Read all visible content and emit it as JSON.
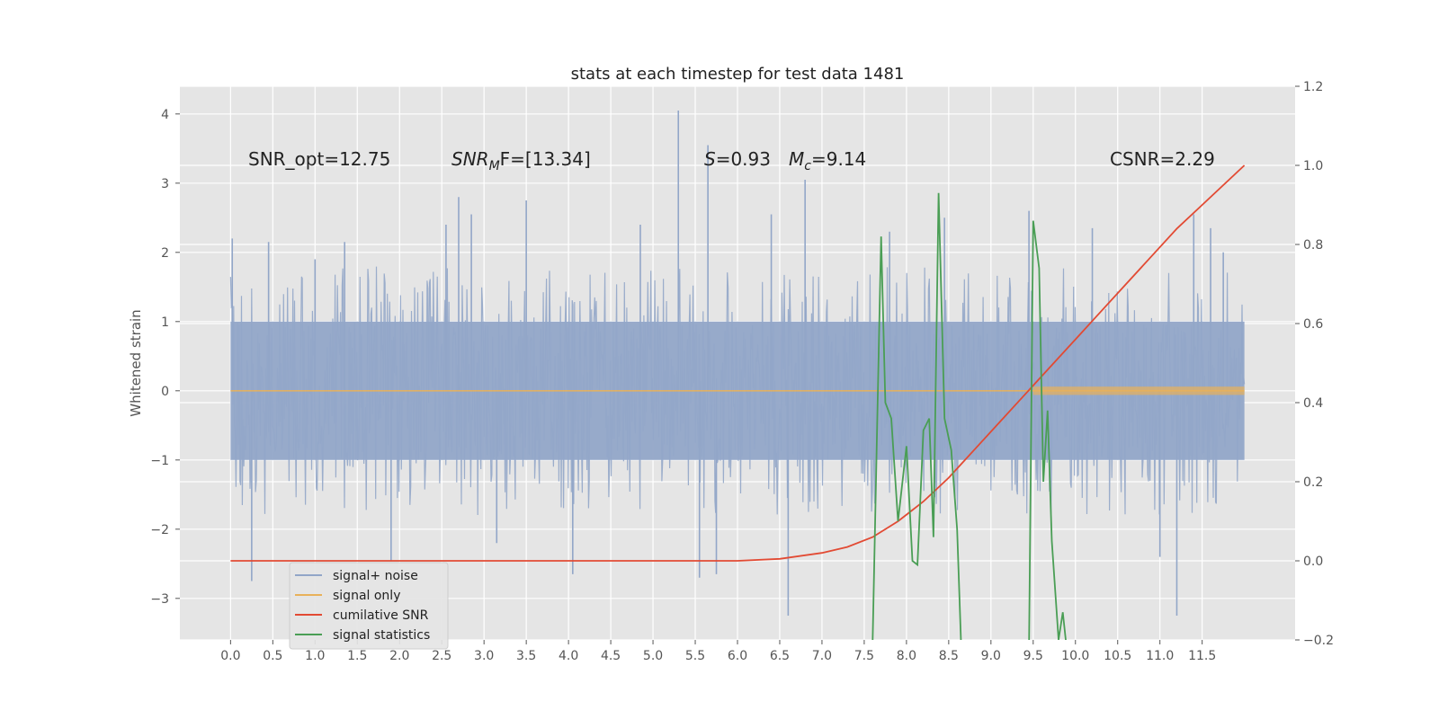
{
  "chart_data": {
    "type": "line",
    "title": "stats at each timestep for test data 1481",
    "ylabel": "Whitened strain",
    "xlim": [
      -0.6,
      12.6
    ],
    "ylim": [
      -3.6,
      4.4
    ],
    "y2lim": [
      -0.2,
      1.2
    ],
    "grid": true,
    "legend_position": "lower-left",
    "x_ticks": [
      0.0,
      0.5,
      1.0,
      1.5,
      2.0,
      2.5,
      3.0,
      3.5,
      4.0,
      4.5,
      5.0,
      5.5,
      6.0,
      6.5,
      7.0,
      7.5,
      8.0,
      8.5,
      9.0,
      9.5,
      10.0,
      10.5,
      11.0,
      11.5
    ],
    "x_tick_labels": [
      "0.0",
      "0.5",
      "1.0",
      "1.5",
      "2.0",
      "2.5",
      "3.0",
      "3.5",
      "4.0",
      "4.5",
      "5.0",
      "5.5",
      "6.0",
      "6.5",
      "7.0",
      "7.5",
      "8.0",
      "8.5",
      "9.0",
      "9.5",
      "10.0",
      "10.5",
      "11.0",
      "11.5"
    ],
    "y_ticks": [
      -3,
      -2,
      -1,
      0,
      1,
      2,
      3,
      4
    ],
    "y_tick_labels": [
      "−3",
      "−2",
      "−1",
      "0",
      "1",
      "2",
      "3",
      "4"
    ],
    "y2_ticks": [
      -0.2,
      0.0,
      0.2,
      0.4,
      0.6,
      0.8,
      1.0,
      1.2
    ],
    "y2_tick_labels": [
      "−0.2",
      "0.0",
      "0.2",
      "0.4",
      "0.6",
      "0.8",
      "1.0",
      "1.2"
    ],
    "annotations": {
      "snr_opt": "SNR_opt=12.75",
      "snr_mf_main": "SNR",
      "snr_mf_sub": "M",
      "snr_mf_rest": "F=[13.34]",
      "s_symbol": "S",
      "s_rest": "=0.93",
      "mc_main": "M",
      "mc_sub": "c",
      "mc_rest": "=9.14",
      "csnr": "CSNR=2.29"
    },
    "series": [
      {
        "name": "signal+ noise",
        "color": "#92a6c8",
        "axis": "left",
        "x_range": [
          0.0,
          12.0
        ],
        "band": [
          -1.0,
          1.0
        ],
        "spikes": [
          [
            0.02,
            2.2
          ],
          [
            0.25,
            -2.75
          ],
          [
            0.45,
            2.15
          ],
          [
            1.0,
            1.9
          ],
          [
            1.35,
            2.15
          ],
          [
            1.9,
            -2.45
          ],
          [
            2.55,
            2.4
          ],
          [
            2.7,
            2.8
          ],
          [
            2.85,
            2.55
          ],
          [
            3.15,
            -2.2
          ],
          [
            3.5,
            2.75
          ],
          [
            4.05,
            -2.65
          ],
          [
            4.85,
            2.4
          ],
          [
            5.3,
            4.05
          ],
          [
            5.55,
            -2.7
          ],
          [
            5.65,
            3.55
          ],
          [
            5.75,
            -2.65
          ],
          [
            6.4,
            2.55
          ],
          [
            6.6,
            -3.25
          ],
          [
            6.8,
            3.05
          ],
          [
            7.8,
            2.3
          ],
          [
            8.45,
            2.5
          ],
          [
            9.45,
            2.6
          ],
          [
            10.2,
            2.35
          ],
          [
            11.0,
            -2.4
          ],
          [
            11.2,
            -3.25
          ],
          [
            11.4,
            2.55
          ],
          [
            11.6,
            2.35
          ],
          [
            11.75,
            2.0
          ]
        ]
      },
      {
        "name": "signal only",
        "color": "#e8b15a",
        "axis": "left",
        "x": [
          0,
          1,
          2,
          3,
          4,
          5,
          6,
          7,
          8,
          9,
          10,
          11,
          12
        ],
        "y": [
          0,
          0,
          0,
          0,
          0,
          0,
          0,
          0,
          0,
          0,
          0,
          0,
          0
        ]
      },
      {
        "name": "cumilative SNR",
        "color": "#e24a33",
        "axis": "right",
        "x": [
          0.0,
          1.0,
          2.0,
          3.0,
          4.0,
          5.0,
          6.0,
          6.5,
          7.0,
          7.3,
          7.6,
          7.9,
          8.2,
          8.5,
          8.8,
          9.1,
          9.4,
          9.7,
          10.0,
          10.3,
          10.6,
          10.9,
          11.2,
          11.5,
          11.8,
          12.0
        ],
        "y": [
          0.0,
          0.0,
          0.0,
          0.0,
          0.0,
          0.0,
          0.0,
          0.005,
          0.02,
          0.035,
          0.06,
          0.1,
          0.15,
          0.21,
          0.28,
          0.35,
          0.42,
          0.49,
          0.56,
          0.63,
          0.7,
          0.77,
          0.84,
          0.9,
          0.96,
          1.0
        ]
      },
      {
        "name": "signal statistics",
        "color": "#4a9e55",
        "axis": "right",
        "x": [
          7.55,
          7.6,
          7.7,
          7.75,
          7.82,
          7.9,
          8.0,
          8.07,
          8.13,
          8.2,
          8.27,
          8.32,
          8.38,
          8.45,
          8.53,
          8.6,
          8.65,
          9.45,
          9.5,
          9.57,
          9.62,
          9.67,
          9.72,
          9.8,
          9.85,
          9.9
        ],
        "y": [
          -0.22,
          -0.2,
          0.82,
          0.4,
          0.36,
          0.1,
          0.29,
          0.0,
          -0.01,
          0.33,
          0.36,
          0.06,
          0.93,
          0.36,
          0.28,
          0.08,
          -0.23,
          -0.23,
          0.86,
          0.74,
          0.2,
          0.38,
          0.05,
          -0.2,
          -0.13,
          -0.23
        ]
      }
    ]
  }
}
